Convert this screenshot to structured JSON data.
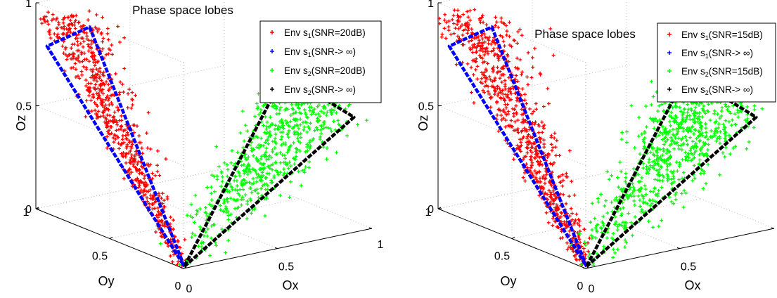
{
  "chart_data": [
    {
      "type": "scatter",
      "projection": "3d",
      "title": "Phase space lobes",
      "xlabel": "Ox",
      "ylabel": "Oy",
      "zlabel": "Oz",
      "xlim": [
        0,
        1
      ],
      "ylim": [
        0,
        1
      ],
      "zlim": [
        0,
        1
      ],
      "xticks": [
        "0",
        "0.5",
        "1"
      ],
      "yticks": [
        "0",
        "0.5",
        "1"
      ],
      "zticks": [
        "0",
        "0.5",
        "1"
      ],
      "grid": true,
      "legend_position": "top-right",
      "series": [
        {
          "label_main": "Env s",
          "label_sub": "1",
          "label_tail": "(SNR=20dB)",
          "color": "#ff0000",
          "style": "scatter",
          "count": 700,
          "lobe": "s1"
        },
        {
          "label_main": "Env s",
          "label_sub": "1",
          "label_tail": "(SNR-> ∞)",
          "color": "#0000ff",
          "style": "line",
          "lobe": "s1",
          "outline": [
            [
              0.02,
              0.02,
              0.0
            ],
            [
              0.05,
              0.7,
              0.96
            ],
            [
              0.02,
              0.95,
              0.8
            ],
            [
              0.02,
              0.02,
              0.0
            ]
          ]
        },
        {
          "label_main": "Env s",
          "label_sub": "2",
          "label_tail": "(SNR=20dB)",
          "color": "#00ff00",
          "style": "scatter",
          "count": 700,
          "lobe": "s2"
        },
        {
          "label_main": "Env s",
          "label_sub": "2",
          "label_tail": "(SNR-> ∞)",
          "color": "#000000",
          "style": "line",
          "lobe": "s2",
          "outline": [
            [
              0.02,
              0.02,
              0.0
            ],
            [
              0.92,
              0.02,
              0.55
            ],
            [
              0.55,
              0.02,
              0.83
            ],
            [
              0.02,
              0.02,
              0.0
            ]
          ]
        }
      ]
    },
    {
      "type": "scatter",
      "projection": "3d",
      "title": "Phase space lobes",
      "xlabel": "Ox",
      "ylabel": "Oy",
      "zlabel": "Oz",
      "xlim": [
        0,
        1
      ],
      "ylim": [
        0,
        1
      ],
      "zlim": [
        0,
        1
      ],
      "xticks": [
        "0",
        "0.5",
        "1"
      ],
      "yticks": [
        "0",
        "0.5",
        "1"
      ],
      "zticks": [
        "0",
        "0.5",
        "1"
      ],
      "grid": true,
      "legend_position": "top-right",
      "series": [
        {
          "label_main": "Env s",
          "label_sub": "1",
          "label_tail": "(SNR=15dB)",
          "color": "#ff0000",
          "style": "scatter",
          "count": 800,
          "lobe": "s1"
        },
        {
          "label_main": "Env s",
          "label_sub": "1",
          "label_tail": "(SNR-> ∞)",
          "color": "#0000ff",
          "style": "line",
          "lobe": "s1",
          "outline": [
            [
              0.02,
              0.02,
              0.0
            ],
            [
              0.05,
              0.7,
              0.96
            ],
            [
              0.02,
              0.95,
              0.8
            ],
            [
              0.02,
              0.02,
              0.0
            ]
          ]
        },
        {
          "label_main": "Env s",
          "label_sub": "2",
          "label_tail": "(SNR=15dB)",
          "color": "#00ff00",
          "style": "scatter",
          "count": 800,
          "lobe": "s2"
        },
        {
          "label_main": "Env s",
          "label_sub": "2",
          "label_tail": "(SNR-> ∞)",
          "color": "#000000",
          "style": "line",
          "lobe": "s2",
          "outline": [
            [
              0.02,
              0.02,
              0.0
            ],
            [
              0.92,
              0.02,
              0.55
            ],
            [
              0.55,
              0.02,
              0.83
            ],
            [
              0.02,
              0.02,
              0.0
            ]
          ]
        }
      ]
    }
  ]
}
